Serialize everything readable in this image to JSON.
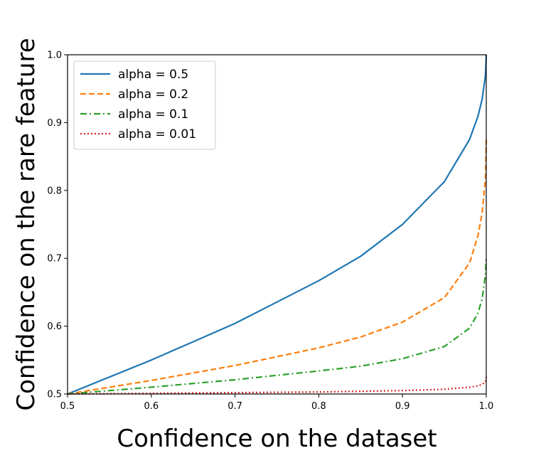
{
  "chart_data": {
    "type": "line",
    "xlabel": "Confidence on the dataset",
    "ylabel": "Confidence on the rare feature",
    "xlim": [
      0.5,
      1.0
    ],
    "ylim": [
      0.5,
      1.0
    ],
    "xticks": [
      "0.5",
      "0.6",
      "0.7",
      "0.8",
      "0.9",
      "1.0"
    ],
    "yticks": [
      "0.5",
      "0.6",
      "0.7",
      "0.8",
      "0.9",
      "1.0"
    ],
    "grid": false,
    "legend_position": "top-left",
    "series": [
      {
        "name": "alpha = 0.5",
        "color": "#1f77b4",
        "dash": "solid",
        "x": [
          0.5,
          0.6,
          0.7,
          0.8,
          0.85,
          0.9,
          0.95,
          0.98,
          0.99,
          0.995,
          0.999,
          1.0
        ],
        "y": [
          0.5,
          0.55,
          0.604,
          0.667,
          0.703,
          0.75,
          0.813,
          0.875,
          0.909,
          0.934,
          0.969,
          1.0
        ]
      },
      {
        "name": "alpha = 0.2",
        "color": "#ff7f0e",
        "dash": "dashed",
        "x": [
          0.5,
          0.6,
          0.7,
          0.8,
          0.85,
          0.9,
          0.95,
          0.98,
          0.99,
          0.995,
          0.999,
          1.0
        ],
        "y": [
          0.5,
          0.52,
          0.542,
          0.568,
          0.584,
          0.606,
          0.642,
          0.693,
          0.733,
          0.766,
          0.817,
          0.875
        ]
      },
      {
        "name": "alpha = 0.1",
        "color": "#2ca02c",
        "dash": "dashdot",
        "x": [
          0.5,
          0.6,
          0.7,
          0.8,
          0.85,
          0.9,
          0.95,
          0.98,
          0.99,
          0.995,
          0.999,
          1.0
        ],
        "y": [
          0.5,
          0.51,
          0.521,
          0.534,
          0.541,
          0.552,
          0.57,
          0.597,
          0.619,
          0.64,
          0.675,
          0.7
        ]
      },
      {
        "name": "alpha = 0.01",
        "color": "#d62728",
        "dash": "dotted",
        "x": [
          0.5,
          0.6,
          0.7,
          0.8,
          0.85,
          0.9,
          0.95,
          0.98,
          0.99,
          0.995,
          0.999,
          1.0
        ],
        "y": [
          0.5,
          0.501,
          0.502,
          0.503,
          0.504,
          0.505,
          0.507,
          0.51,
          0.512,
          0.514,
          0.518,
          0.525
        ]
      }
    ]
  }
}
